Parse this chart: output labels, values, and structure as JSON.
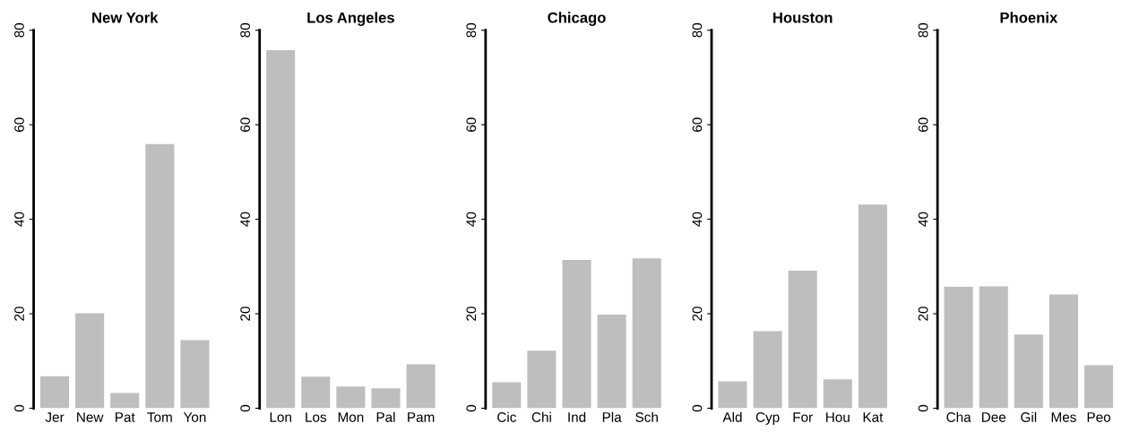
{
  "chart_data": [
    {
      "type": "bar",
      "title": "New York",
      "categories": [
        "Jer",
        "New",
        "Pat",
        "Tom",
        "Yon"
      ],
      "values": [
        6.8,
        20.1,
        3.2,
        55.9,
        14.4
      ],
      "color": "#bebebe",
      "ylim": [
        0,
        80
      ],
      "yticks": [
        0,
        20,
        40,
        60,
        80
      ],
      "grid": false
    },
    {
      "type": "bar",
      "title": "Los Angeles",
      "categories": [
        "Lon",
        "Los",
        "Mon",
        "Pal",
        "Pam"
      ],
      "values": [
        75.8,
        6.7,
        4.6,
        4.2,
        9.3
      ],
      "color": "#bebebe",
      "ylim": [
        0,
        80
      ],
      "yticks": [
        0,
        20,
        40,
        60,
        80
      ],
      "grid": false
    },
    {
      "type": "bar",
      "title": "Chicago",
      "categories": [
        "Cic",
        "Chi",
        "Ind",
        "Pla",
        "Sch"
      ],
      "values": [
        5.5,
        12.2,
        31.4,
        19.8,
        31.7
      ],
      "color": "#bebebe",
      "ylim": [
        0,
        80
      ],
      "yticks": [
        0,
        20,
        40,
        60,
        80
      ],
      "grid": false
    },
    {
      "type": "bar",
      "title": "Houston",
      "categories": [
        "Ald",
        "Cyp",
        "For",
        "Hou",
        "Kat"
      ],
      "values": [
        5.7,
        16.3,
        29.1,
        6.1,
        43.1
      ],
      "color": "#bebebe",
      "ylim": [
        0,
        80
      ],
      "yticks": [
        0,
        20,
        40,
        60,
        80
      ],
      "grid": false
    },
    {
      "type": "bar",
      "title": "Phoenix",
      "categories": [
        "Cha",
        "Dee",
        "Gil",
        "Mes",
        "Peo"
      ],
      "values": [
        25.7,
        25.8,
        15.6,
        24.1,
        9.1
      ],
      "color": "#bebebe",
      "ylim": [
        0,
        80
      ],
      "yticks": [
        0,
        20,
        40,
        60,
        80
      ],
      "grid": false
    }
  ]
}
